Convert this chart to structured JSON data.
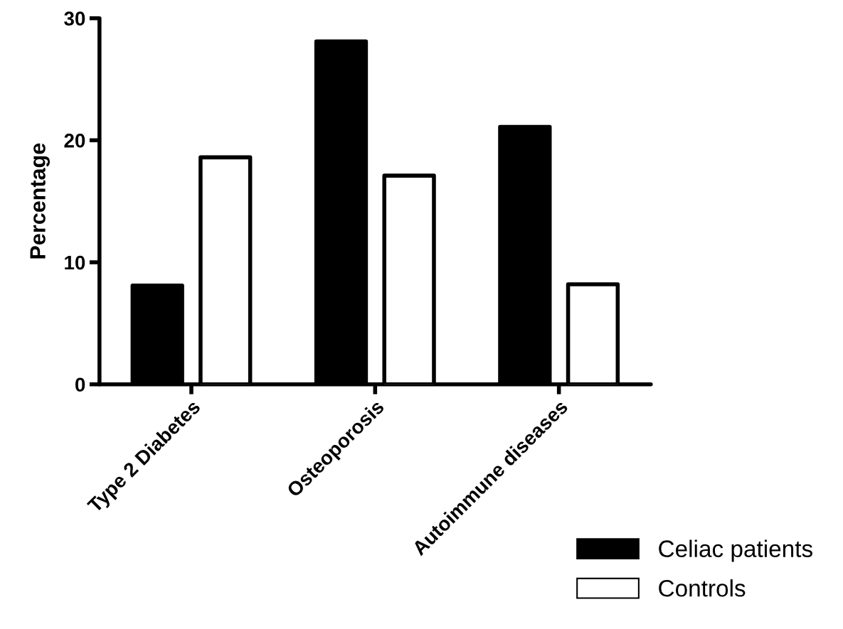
{
  "chart_data": {
    "type": "bar",
    "ylabel": "Percentage",
    "categories": [
      "Type 2 Diabetes",
      "Osteoporosis",
      "Autoimmune diseases"
    ],
    "series": [
      {
        "name": "Celiac patients",
        "color": "#000000",
        "values": [
          8.1,
          28.1,
          21.1
        ]
      },
      {
        "name": "Controls",
        "color": "#ffffff",
        "values": [
          18.6,
          17.1,
          8.2
        ]
      }
    ],
    "ylim": [
      0,
      30
    ],
    "yticks": [
      0,
      10,
      20,
      30
    ],
    "grid": false,
    "legend": "bottom right"
  }
}
